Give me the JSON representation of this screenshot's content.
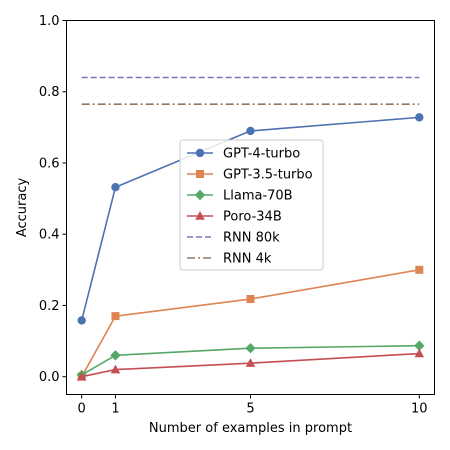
{
  "chart_data": {
    "type": "line",
    "title": "",
    "xlabel": "Number of examples in prompt",
    "ylabel": "Accuracy",
    "xlim": [
      -0.45,
      10.45
    ],
    "ylim": [
      -0.05,
      1.0
    ],
    "xticks": [
      0,
      1,
      5,
      10
    ],
    "xtick_labels": [
      "0",
      "1",
      "5",
      "10"
    ],
    "yticks": [
      0.0,
      0.2,
      0.4,
      0.6,
      0.8,
      1.0
    ],
    "ytick_labels": [
      "0.0",
      "0.2",
      "0.4",
      "0.6",
      "0.8",
      "1.0"
    ],
    "grid": false,
    "legend_position": "center",
    "series": [
      {
        "name": "GPT-4-turbo",
        "x": [
          0,
          1,
          5,
          10
        ],
        "values": [
          0.158,
          0.532,
          0.69,
          0.728
        ],
        "color": "#4c72b0",
        "marker": "circle",
        "linestyle": "solid"
      },
      {
        "name": "GPT-3.5-turbo",
        "x": [
          0,
          1,
          5,
          10
        ],
        "values": [
          0.0,
          0.17,
          0.218,
          0.3
        ],
        "color": "#dd8452",
        "marker": "square",
        "linestyle": "solid"
      },
      {
        "name": "Llama-70B",
        "x": [
          0,
          1,
          5,
          10
        ],
        "values": [
          0.005,
          0.06,
          0.08,
          0.087
        ],
        "color": "#55a868",
        "marker": "diamond",
        "linestyle": "solid"
      },
      {
        "name": "Poro-34B",
        "x": [
          0,
          1,
          5,
          10
        ],
        "values": [
          0.0,
          0.02,
          0.038,
          0.065
        ],
        "color": "#c44e52",
        "marker": "triangle",
        "linestyle": "solid"
      },
      {
        "name": "RNN 80k",
        "x": [
          0,
          10
        ],
        "values": [
          0.84,
          0.84
        ],
        "color": "#8172b3",
        "marker": "none",
        "linestyle": "dashed"
      },
      {
        "name": "RNN 4k",
        "x": [
          0,
          10
        ],
        "values": [
          0.765,
          0.765
        ],
        "color": "#937860",
        "marker": "none",
        "linestyle": "dashdot"
      }
    ]
  }
}
